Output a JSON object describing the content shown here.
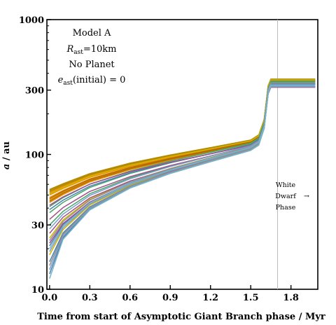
{
  "chart_data": {
    "type": "line",
    "xlabel": "Time from start of Asymptotic Giant Branch phase / Myr",
    "ylabel_main": "a",
    "ylabel_unit": " / au",
    "xlim": [
      -0.02,
      2.0
    ],
    "ylim": [
      10,
      1000
    ],
    "yscale": "log",
    "x_ticks": [
      {
        "value": 0.0,
        "label": "0.0"
      },
      {
        "value": 0.3,
        "label": "0.3"
      },
      {
        "value": 0.6,
        "label": "0.6"
      },
      {
        "value": 0.9,
        "label": "0.9"
      },
      {
        "value": 1.2,
        "label": "1.2"
      },
      {
        "value": 1.5,
        "label": "1.5"
      },
      {
        "value": 1.8,
        "label": "1.8"
      }
    ],
    "y_ticks": [
      {
        "value": 10,
        "label": "10"
      },
      {
        "value": 30,
        "label": "30"
      },
      {
        "value": 100,
        "label": "100"
      },
      {
        "value": 300,
        "label": "300"
      },
      {
        "value": 1000,
        "label": "1000"
      }
    ],
    "annotation": {
      "line1": "Model A",
      "line2_sym": "R",
      "line2_sub": "ast",
      "line2_rest": "=10km",
      "line3": "No Planet",
      "line4_sym": "e",
      "line4_sub": "ast",
      "line4_rest": "(initial) = 0"
    },
    "white_dwarf": {
      "x": 1.7,
      "label1": "White",
      "label2": "Dwarf",
      "label3": "Phase",
      "arrow": "→"
    },
    "series_shape": {
      "x": [
        0.0,
        0.1,
        0.3,
        0.6,
        0.9,
        1.2,
        1.5,
        1.56,
        1.6,
        1.63,
        1.65,
        1.7,
        1.8,
        1.9,
        1.98
      ],
      "reference_curve_ending_at_120au": [
        53,
        58,
        68,
        80,
        91,
        102,
        115,
        120,
        160,
        300,
        338,
        338,
        338,
        338,
        338
      ]
    },
    "series_groups": [
      {
        "color": "#b38a00",
        "count": 3,
        "start": [
          55,
          54,
          53
        ],
        "end120": [
          128,
          127,
          126
        ],
        "final": [
          362,
          360,
          358
        ]
      },
      {
        "color": "#e89000",
        "count": 5,
        "start": [
          52,
          50,
          48,
          46,
          44
        ],
        "end120": [
          125,
          124,
          123,
          122,
          121
        ],
        "final": [
          356,
          354,
          352,
          351,
          350
        ]
      },
      {
        "color": "#b36b00",
        "count": 2,
        "start": [
          47,
          45
        ],
        "end120": [
          124,
          123
        ],
        "final": [
          355,
          353
        ]
      },
      {
        "color": "#d2b400",
        "count": 3,
        "start": [
          51,
          24,
          18
        ],
        "end120": [
          126,
          114,
          111
        ],
        "final": [
          357,
          345,
          343
        ]
      },
      {
        "color": "#4aa56b",
        "count": 3,
        "start": [
          41,
          37,
          30
        ],
        "end120": [
          121,
          119,
          116
        ],
        "final": [
          349,
          346,
          344
        ]
      },
      {
        "color": "#4a80b0",
        "count": 4,
        "start": [
          39,
          21,
          16,
          13
        ],
        "end120": [
          118,
          113,
          110,
          108
        ],
        "final": [
          336,
          334,
          332,
          330
        ]
      },
      {
        "color": "#a0508a",
        "count": 4,
        "start": [
          42,
          33,
          26,
          22
        ],
        "end120": [
          117,
          115,
          112,
          109
        ],
        "final": [
          318,
          317,
          316,
          315
        ]
      },
      {
        "color": "#7aa0c8",
        "count": 3,
        "start": [
          28,
          19,
          14
        ],
        "end120": [
          116,
          112,
          109
        ],
        "final": [
          320,
          319,
          318
        ]
      },
      {
        "color": "#909090",
        "count": 2,
        "start": [
          23,
          15
        ],
        "end120": [
          114,
          110
        ],
        "final": [
          340,
          338
        ]
      },
      {
        "color": "#78b4c8",
        "count": 2,
        "start": [
          20,
          12
        ],
        "end120": [
          113,
          107
        ],
        "final": [
          328,
          326
        ]
      }
    ]
  }
}
